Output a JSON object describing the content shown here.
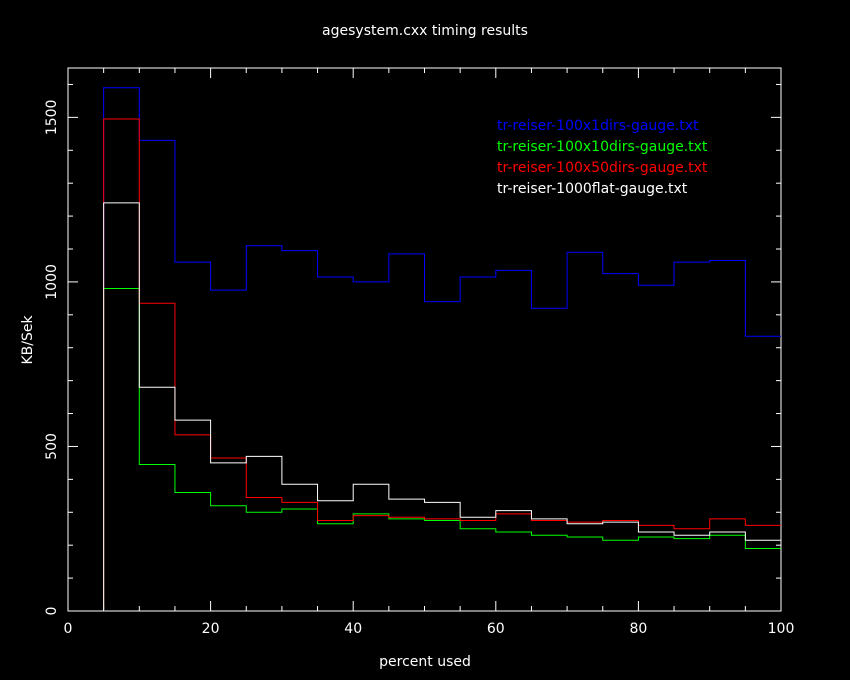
{
  "chart_data": {
    "type": "line",
    "step": true,
    "title": "agesystem.cxx timing results",
    "xlabel": "percent used",
    "ylabel": "KB/Sek",
    "xlim": [
      0,
      100
    ],
    "ylim": [
      0,
      1650
    ],
    "xticks": [
      0,
      20,
      40,
      60,
      80,
      100
    ],
    "xtick_labels": [
      "0",
      "20",
      "40",
      "60",
      "80",
      "100"
    ],
    "yticks": [
      0,
      500,
      1000,
      1500
    ],
    "ytick_labels": [
      "0",
      "500",
      "1000",
      "1500"
    ],
    "grid": false,
    "legend_position": "top-right",
    "bin_edges": [
      0,
      5,
      10,
      15,
      20,
      25,
      30,
      35,
      40,
      45,
      50,
      55,
      60,
      65,
      70,
      75,
      80,
      85,
      90,
      95,
      100
    ],
    "series": [
      {
        "name": "tr-reiser-100x1dirs-gauge.txt",
        "color": "#0000ff",
        "values": [
          0,
          1590,
          1430,
          1060,
          975,
          1110,
          1095,
          1015,
          1000,
          1085,
          940,
          1015,
          1035,
          920,
          1090,
          1025,
          990,
          1060,
          1065,
          835
        ]
      },
      {
        "name": "tr-reiser-100x10dirs-gauge.txt",
        "color": "#00ff00",
        "values": [
          0,
          980,
          445,
          360,
          320,
          300,
          310,
          265,
          295,
          280,
          275,
          250,
          240,
          230,
          225,
          215,
          225,
          220,
          230,
          190
        ]
      },
      {
        "name": "tr-reiser-100x50dirs-gauge.txt",
        "color": "#ff0000",
        "values": [
          0,
          1495,
          935,
          535,
          465,
          345,
          330,
          275,
          290,
          285,
          280,
          275,
          295,
          275,
          270,
          275,
          260,
          250,
          280,
          260
        ]
      },
      {
        "name": "tr-reiser-1000flat-gauge.txt",
        "color": "#ffffff",
        "values": [
          0,
          1240,
          680,
          580,
          450,
          470,
          385,
          335,
          385,
          340,
          330,
          285,
          305,
          280,
          265,
          270,
          240,
          230,
          240,
          215
        ]
      }
    ]
  }
}
